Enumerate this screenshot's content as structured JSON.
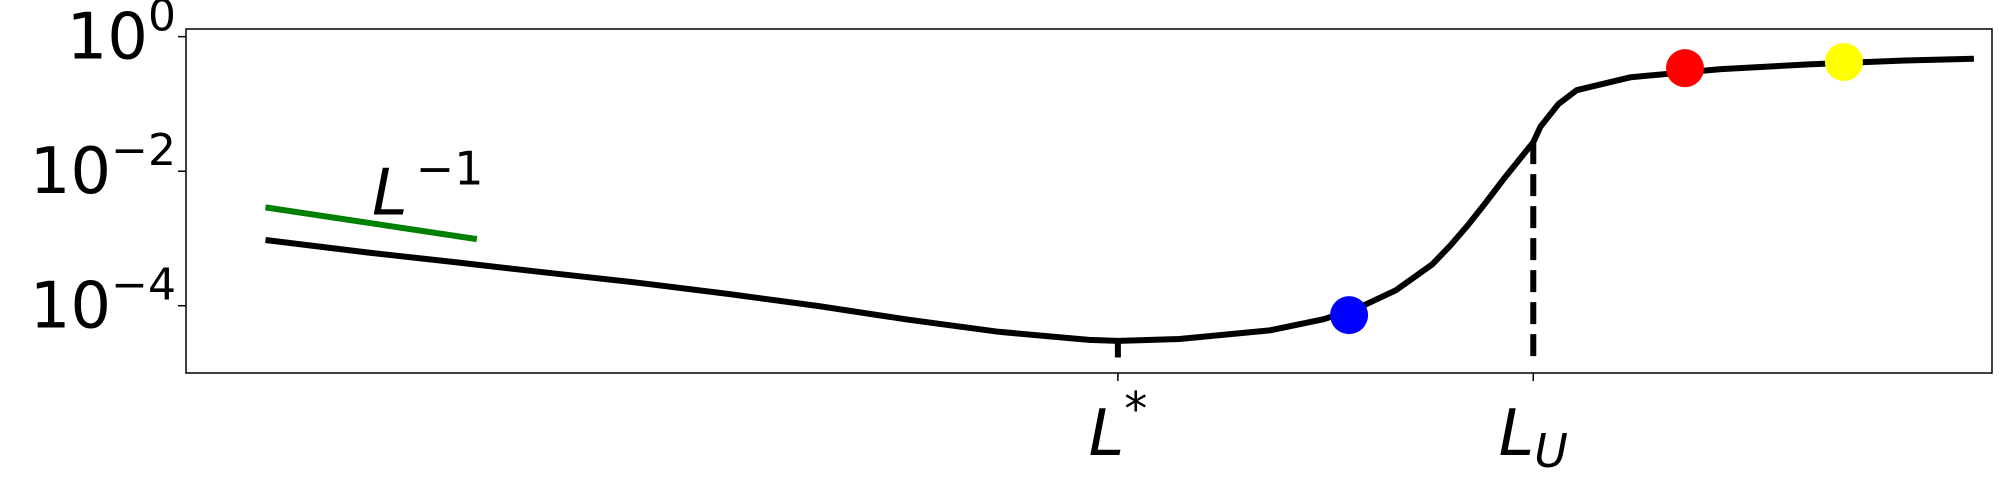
{
  "chart_data": {
    "type": "line",
    "title": "",
    "xlabel": "",
    "ylabel": "",
    "yscale": "log",
    "grid": false,
    "y_ticks": [
      {
        "value": 1,
        "base": "10",
        "exponent": "0"
      },
      {
        "value": 0.01,
        "base": "10",
        "exponent": "−2"
      },
      {
        "value": 0.0001,
        "base": "10",
        "exponent": "−4"
      }
    ],
    "x_ticks": [
      {
        "name": "L*",
        "x": 0.516,
        "base": "L",
        "sup": "*",
        "sub": ""
      },
      {
        "name": "L_U",
        "x": 0.746,
        "base": "L",
        "sup": "",
        "sub": "U"
      }
    ],
    "xlim": [
      0,
      1
    ],
    "ylim": [
      1e-05,
      1.3
    ],
    "colors": {
      "curve": "#000000",
      "reference": "#008000",
      "markers": [
        "#0000ff",
        "#ff0000",
        "#ffff00"
      ]
    },
    "series": [
      {
        "kind": "curve",
        "x": [
          0.044,
          0.1,
          0.15,
          0.2,
          0.25,
          0.3,
          0.35,
          0.4,
          0.45,
          0.5,
          0.516,
          0.55,
          0.6,
          0.63,
          0.65,
          0.67,
          0.69,
          0.7,
          0.71,
          0.72,
          0.73,
          0.74,
          0.746,
          0.75,
          0.76,
          0.77,
          0.8,
          0.85,
          0.9,
          0.95,
          0.99
        ],
        "y": [
          0.00095,
          0.00062,
          0.00044,
          0.00031,
          0.00022,
          0.00015,
          9.9e-05,
          6.2e-05,
          4.1e-05,
          3.1e-05,
          3e-05,
          3.2e-05,
          4.3e-05,
          6.3e-05,
          9.5e-05,
          0.00017,
          0.00041,
          0.00078,
          0.0016,
          0.0035,
          0.0079,
          0.017,
          0.027,
          0.046,
          0.1,
          0.16,
          0.25,
          0.33,
          0.39,
          0.44,
          0.47
        ]
      },
      {
        "kind": "reference",
        "x": [
          0.044,
          0.161
        ],
        "y": [
          0.0029,
          0.00098
        ]
      }
    ],
    "annotations": [
      {
        "text_base": "L",
        "text_sup": "−1",
        "x": 0.103,
        "y": 0.0052
      }
    ],
    "markers": [
      {
        "x": 0.644,
        "y": 7.25e-05,
        "color": "#0000ff"
      },
      {
        "x": 0.83,
        "y": 0.34,
        "color": "#ff0000"
      },
      {
        "x": 0.918,
        "y": 0.42,
        "color": "#ffff00"
      }
    ],
    "vertical_lines": [
      {
        "x": 0.746,
        "y_top": 0.027,
        "y_bottom": 1.7e-05,
        "style": "dashed"
      },
      {
        "x": 0.516,
        "y_top": 3e-05,
        "y_bottom": 1.7e-05,
        "style": "dashed"
      }
    ]
  }
}
